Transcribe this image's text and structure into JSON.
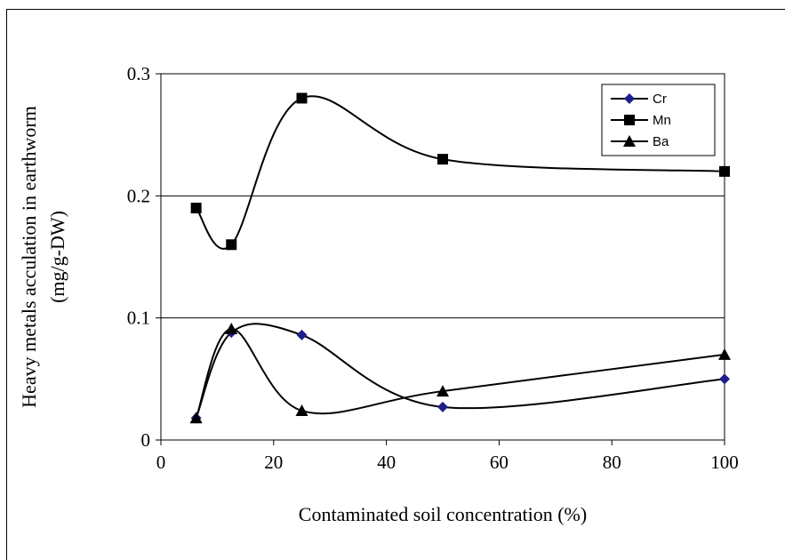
{
  "chart_data": {
    "type": "line",
    "title": "",
    "xlabel": "Contaminated soil concentration (%)",
    "ylabel_line1": "Heavy metals acculation in earthworm",
    "ylabel_line2": "(mg/g-DW)",
    "xlim": [
      0,
      100
    ],
    "ylim": [
      0,
      0.3
    ],
    "xticks": [
      "0",
      "20",
      "40",
      "60",
      "80",
      "100"
    ],
    "yticks": [
      "0",
      "0.1",
      "0.2",
      "0.3"
    ],
    "grid": "horizontal major lines",
    "legend_position": "top-right",
    "x": [
      6.25,
      12.5,
      25,
      50,
      100
    ],
    "series": [
      {
        "name": "Cr",
        "marker": "diamond",
        "color": "#1f1f8a",
        "values": [
          0.018,
          0.088,
          0.086,
          0.027,
          0.05
        ]
      },
      {
        "name": "Mn",
        "marker": "square",
        "color": "#000000",
        "values": [
          0.19,
          0.16,
          0.28,
          0.23,
          0.22
        ]
      },
      {
        "name": "Ba",
        "marker": "triangle",
        "color": "#000000",
        "values": [
          0.018,
          0.091,
          0.024,
          0.04,
          0.07
        ]
      }
    ]
  }
}
